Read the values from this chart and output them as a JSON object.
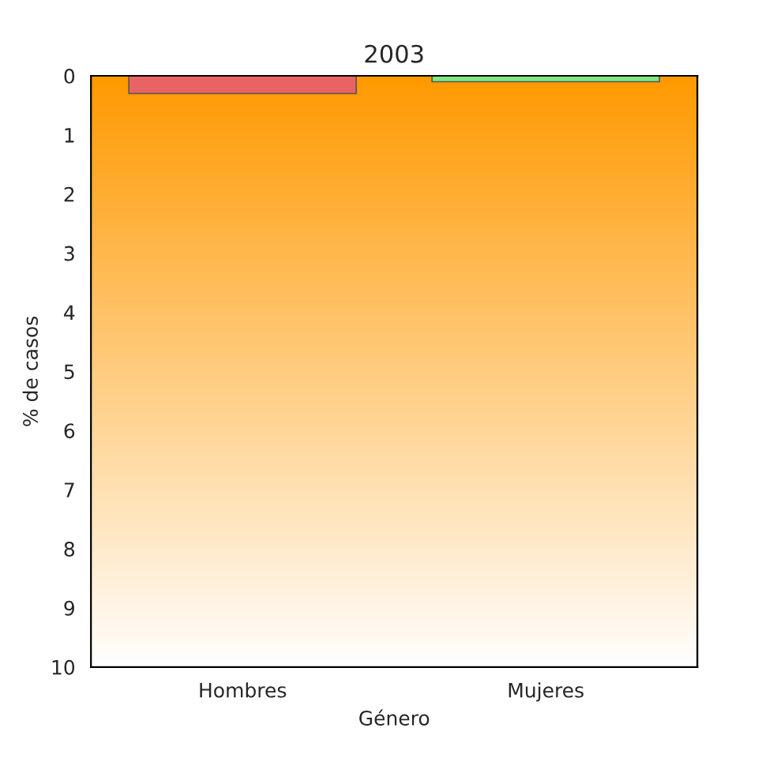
{
  "chart_data": {
    "type": "bar",
    "title": "2003",
    "xlabel": "Género",
    "ylabel": "% de casos",
    "categories": [
      "Hombres",
      "Mujeres"
    ],
    "values": [
      0.3,
      0.1
    ],
    "colors": [
      "#e86464",
      "#7ee87e"
    ],
    "ylim": [
      10,
      0
    ],
    "yticks": [
      0,
      1,
      2,
      3,
      4,
      5,
      6,
      7,
      8,
      9,
      10
    ],
    "grid": false
  }
}
